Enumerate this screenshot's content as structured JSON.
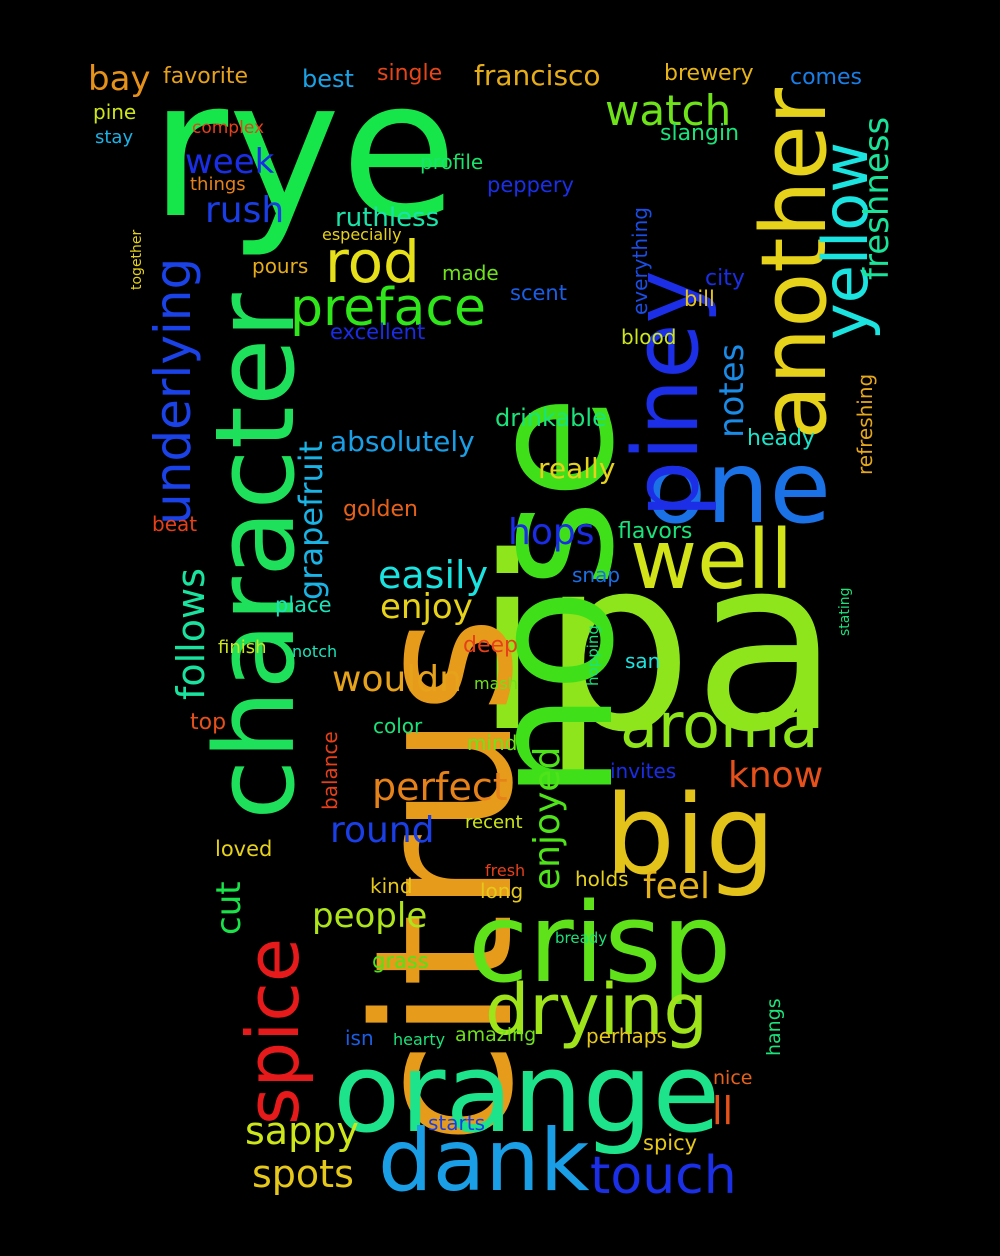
{
  "background": "#000000",
  "words": [
    {
      "text": "ipa",
      "color": "#8fe51b"
    },
    {
      "text": "citrus",
      "color": "#e69c1a"
    },
    {
      "text": "nose",
      "color": "#3fe01a"
    },
    {
      "text": "rye",
      "color": "#16e64a"
    },
    {
      "text": "character",
      "color": "#1ee05a"
    },
    {
      "text": "orange",
      "color": "#1de38a"
    },
    {
      "text": "crisp",
      "color": "#5fe21a"
    },
    {
      "text": "big",
      "color": "#e3c21a"
    },
    {
      "text": "one",
      "color": "#1a72e6"
    },
    {
      "text": "piney",
      "color": "#1c2fe6"
    },
    {
      "text": "another",
      "color": "#e6d21a"
    },
    {
      "text": "dank",
      "color": "#1a9fe6"
    },
    {
      "text": "well",
      "color": "#d2e31a"
    },
    {
      "text": "spice",
      "color": "#e61a1a"
    },
    {
      "text": "drying",
      "color": "#9fe31a"
    },
    {
      "text": "yellow",
      "color": "#1ae3e0"
    },
    {
      "text": "aroma",
      "color": "#8ee51a"
    },
    {
      "text": "preface",
      "color": "#2fe61a"
    },
    {
      "text": "underlying",
      "color": "#1a42e6"
    },
    {
      "text": "rod",
      "color": "#e6e01a"
    },
    {
      "text": "touch",
      "color": "#1a2fe6"
    },
    {
      "text": "watch",
      "color": "#6fe31a"
    },
    {
      "text": "freshness",
      "color": "#1ae39a"
    },
    {
      "text": "perfect",
      "color": "#e6821a"
    },
    {
      "text": "follows",
      "color": "#1ae3a0"
    },
    {
      "text": "grapefruit",
      "color": "#1ab3e6"
    },
    {
      "text": "sappy",
      "color": "#cde61a"
    },
    {
      "text": "spots",
      "color": "#e6c81a"
    },
    {
      "text": "wouldn",
      "color": "#e6a21a"
    },
    {
      "text": "enjoyed",
      "color": "#4fe31a"
    },
    {
      "text": "hops",
      "color": "#1a2ce6"
    },
    {
      "text": "easily",
      "color": "#1ae3e0"
    },
    {
      "text": "round",
      "color": "#1a3fe6"
    },
    {
      "text": "people",
      "color": "#aee51a"
    },
    {
      "text": "notes",
      "color": "#1a8be6"
    },
    {
      "text": "cut",
      "color": "#1ae34a"
    },
    {
      "text": "know",
      "color": "#e6501a"
    },
    {
      "text": "feel",
      "color": "#e6b41a"
    },
    {
      "text": "enjoy",
      "color": "#e6d21a"
    },
    {
      "text": "ll",
      "color": "#e6521a"
    },
    {
      "text": "rush",
      "color": "#1a3ee6"
    },
    {
      "text": "week",
      "color": "#1a2ee6"
    },
    {
      "text": "bay",
      "color": "#e6921a"
    },
    {
      "text": "francisco",
      "color": "#e6ad1a"
    },
    {
      "text": "absolutely",
      "color": "#1a9fe6"
    },
    {
      "text": "really",
      "color": "#e6d21a"
    },
    {
      "text": "ruthless",
      "color": "#1ae3a8"
    },
    {
      "text": "drinkable",
      "color": "#1ae37a"
    },
    {
      "text": "best",
      "color": "#1aa2e6"
    },
    {
      "text": "favorite",
      "color": "#e6a21a"
    },
    {
      "text": "brewery",
      "color": "#e6b41a"
    },
    {
      "text": "comes",
      "color": "#1a7ee6"
    },
    {
      "text": "single",
      "color": "#e6451a"
    },
    {
      "text": "slangin",
      "color": "#1ae37a"
    },
    {
      "text": "pine",
      "color": "#cde61a"
    },
    {
      "text": "stay",
      "color": "#1ab3e6"
    },
    {
      "text": "complex",
      "color": "#e6401a"
    },
    {
      "text": "things",
      "color": "#e6821a"
    },
    {
      "text": "profile",
      "color": "#1ae36a"
    },
    {
      "text": "peppery",
      "color": "#1a2fe6"
    },
    {
      "text": "especially",
      "color": "#e6d21a"
    },
    {
      "text": "everything",
      "color": "#1a4ee6"
    },
    {
      "text": "pours",
      "color": "#e6ad1a"
    },
    {
      "text": "made",
      "color": "#6fe31a"
    },
    {
      "text": "city",
      "color": "#1a2ee6"
    },
    {
      "text": "bill",
      "color": "#e6c41a"
    },
    {
      "text": "scent",
      "color": "#1a5ee6"
    },
    {
      "text": "excellent",
      "color": "#1a2ce6"
    },
    {
      "text": "blood",
      "color": "#cde61a"
    },
    {
      "text": "refreshing",
      "color": "#e6a81a"
    },
    {
      "text": "heady",
      "color": "#1ae3c8"
    },
    {
      "text": "together",
      "color": "#e6d21a"
    },
    {
      "text": "beat",
      "color": "#e6401a"
    },
    {
      "text": "golden",
      "color": "#e6621a"
    },
    {
      "text": "flavors",
      "color": "#1ae37a"
    },
    {
      "text": "snap",
      "color": "#1a6ee6"
    },
    {
      "text": "place",
      "color": "#1ae3b8"
    },
    {
      "text": "finish",
      "color": "#cde61a"
    },
    {
      "text": "notch",
      "color": "#1ae3b8"
    },
    {
      "text": "deep",
      "color": "#e6401a"
    },
    {
      "text": "mash",
      "color": "#6fe31a"
    },
    {
      "text": "hopping",
      "color": "#1ae37a"
    },
    {
      "text": "san",
      "color": "#1ae3e0"
    },
    {
      "text": "stating",
      "color": "#1ae37a"
    },
    {
      "text": "top",
      "color": "#e6501a"
    },
    {
      "text": "balance",
      "color": "#e6401a"
    },
    {
      "text": "color",
      "color": "#1ae37a"
    },
    {
      "text": "mind",
      "color": "#6fe31a"
    },
    {
      "text": "invites",
      "color": "#1a2ce6"
    },
    {
      "text": "loved",
      "color": "#e6d21a"
    },
    {
      "text": "recent",
      "color": "#cde61a"
    },
    {
      "text": "fresh",
      "color": "#e6401a"
    },
    {
      "text": "holds",
      "color": "#e6d21a"
    },
    {
      "text": "kind",
      "color": "#e6c81a"
    },
    {
      "text": "long",
      "color": "#e6c81a"
    },
    {
      "text": "bready",
      "color": "#1ae37a"
    },
    {
      "text": "grass",
      "color": "#4fe31a"
    },
    {
      "text": "hangs",
      "color": "#1ae37a"
    },
    {
      "text": "isn",
      "color": "#1a5ee6"
    },
    {
      "text": "hearty",
      "color": "#1ae37a"
    },
    {
      "text": "amazing",
      "color": "#6fe31a"
    },
    {
      "text": "perhaps",
      "color": "#e6c81a"
    },
    {
      "text": "nice",
      "color": "#e6621a"
    },
    {
      "text": "starts",
      "color": "#1a3ee6"
    },
    {
      "text": "spicy",
      "color": "#e6c81a"
    }
  ]
}
